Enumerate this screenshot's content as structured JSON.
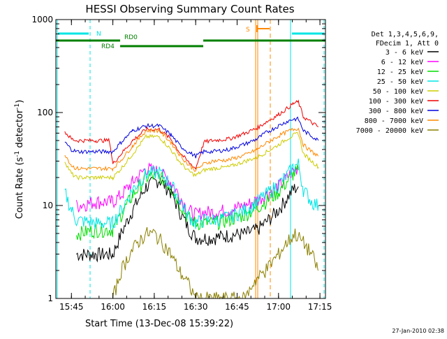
{
  "chart_data": {
    "type": "line",
    "title": "HESSI Observing Summary Count Rates",
    "xlabel": "Start Time (13-Dec-08 15:39:22)",
    "ylabel_main": "Count Rate (s",
    "ylabel_sup": "-1",
    "ylabel_mid": " detector",
    "ylabel_sup2": "-1",
    "ylabel_end": ")",
    "timestamp": "27-Jan-2010 02:38",
    "x_range": [
      "15:39:22",
      "17:17"
    ],
    "ylim": [
      1,
      1000
    ],
    "yscale": "log",
    "x_ticks": [
      "15:45",
      "16:00",
      "16:15",
      "16:30",
      "16:45",
      "17:00",
      "17:15"
    ],
    "y_ticks": [
      "1",
      "10",
      "100",
      "1000"
    ],
    "legend": {
      "position": "right",
      "header": [
        "Det 1,3,4,5,6,9,",
        "FDecim 1, Att 0"
      ],
      "entries": [
        {
          "label": "3 - 6 keV",
          "color": "#000000"
        },
        {
          "label": "6 - 12 keV",
          "color": "#ff00ff"
        },
        {
          "label": "12 - 25 keV",
          "color": "#00dd00"
        },
        {
          "label": "25 - 50 keV",
          "color": "#00e5e5"
        },
        {
          "label": "50 - 100 keV",
          "color": "#cccc00"
        },
        {
          "label": "100 - 300 keV",
          "color": "#ee0000"
        },
        {
          "label": "300 - 800 keV",
          "color": "#0000dd"
        },
        {
          "label": "800 - 7000 keV",
          "color": "#ff8800"
        },
        {
          "label": "7000 - 20000 keV",
          "color": "#8b8000"
        }
      ]
    },
    "flags": {
      "N_label": "N",
      "S_label": "S",
      "RD0_label": "RD0",
      "RD4_label": "RD4",
      "night_color": "#00e5e5",
      "saa_color": "#ff8800",
      "rd_color": "#008000"
    },
    "series": [
      {
        "name": "3 - 6 keV",
        "color": "#000000",
        "x": [
          15.76,
          15.78,
          15.9,
          15.98,
          16.0,
          16.05,
          16.12,
          16.2,
          16.28,
          16.35,
          16.4,
          16.45,
          16.5,
          16.55,
          16.6,
          16.7,
          16.8,
          16.87,
          16.92,
          17.0,
          17.05,
          17.09,
          17.12
        ],
        "y": [
          null,
          3,
          3,
          3,
          3,
          5,
          9,
          16,
          19,
          14,
          9,
          6,
          4.5,
          4.5,
          4.5,
          4.8,
          5,
          5.5,
          6.5,
          9,
          12,
          15,
          16
        ]
      },
      {
        "name": "6 - 12 keV",
        "color": "#ff00ff",
        "x": [
          15.76,
          15.78,
          15.9,
          15.98,
          16.0,
          16.05,
          16.12,
          16.2,
          16.28,
          16.35,
          16.4,
          16.45,
          16.5,
          16.55,
          16.6,
          16.7,
          16.8,
          16.87,
          16.92,
          17.0,
          17.05,
          17.09,
          17.12
        ],
        "y": [
          null,
          10,
          11,
          11,
          11,
          13,
          18,
          25,
          23,
          18,
          13,
          9,
          8,
          8.5,
          8.5,
          9,
          10,
          11.5,
          13,
          16,
          20,
          24,
          26
        ]
      },
      {
        "name": "12 - 25 keV",
        "color": "#00dd00",
        "x": [
          15.76,
          15.78,
          15.9,
          15.98,
          16.0,
          16.05,
          16.12,
          16.2,
          16.28,
          16.35,
          16.4,
          16.45,
          16.5,
          16.55,
          16.6,
          16.7,
          16.8,
          16.87,
          16.92,
          17.0,
          17.05,
          17.09,
          17.12
        ],
        "y": [
          null,
          5,
          5.5,
          5.5,
          5.5,
          8,
          13,
          20,
          21,
          16,
          11,
          7.5,
          6.5,
          6.5,
          6.5,
          7,
          8,
          9.5,
          11,
          14,
          18,
          22,
          24
        ]
      },
      {
        "name": "25 - 50 keV",
        "color": "#00e5e5",
        "x": [
          15.71,
          15.75,
          15.78,
          15.9,
          15.98,
          16.0,
          16.05,
          16.12,
          16.2,
          16.28,
          16.35,
          16.4,
          16.45,
          16.5,
          16.55,
          16.6,
          16.7,
          16.8,
          16.87,
          16.92,
          17.0,
          17.05,
          17.09,
          17.12,
          17.15,
          17.2,
          17.24
        ],
        "y": [
          14,
          9,
          7,
          6.5,
          6.5,
          6.5,
          9,
          15,
          22,
          23,
          17,
          12,
          8,
          6.5,
          7,
          7,
          7.5,
          9,
          11,
          13,
          17,
          21,
          26,
          28,
          15,
          11,
          10
        ]
      },
      {
        "name": "50 - 100 keV",
        "color": "#cccc00",
        "x": [
          15.71,
          15.75,
          15.78,
          15.9,
          15.98,
          16.0,
          16.05,
          16.12,
          16.2,
          16.28,
          16.35,
          16.4,
          16.45,
          16.5,
          16.55,
          16.6,
          16.7,
          16.8,
          16.87,
          16.92,
          17.0,
          17.05,
          17.09,
          17.12,
          17.15,
          17.2,
          17.24
        ],
        "y": [
          30,
          22,
          20,
          20,
          20,
          20,
          25,
          36,
          55,
          55,
          40,
          30,
          24,
          21,
          24,
          25,
          26,
          30,
          33,
          37,
          45,
          52,
          57,
          60,
          36,
          30,
          26
        ]
      },
      {
        "name": "100 - 300 keV",
        "color": "#ee0000",
        "x": [
          15.71,
          15.75,
          15.78,
          15.9,
          15.98,
          16.0,
          16.05,
          16.12,
          16.2,
          16.28,
          16.35,
          16.4,
          16.45,
          16.5,
          16.55,
          16.6,
          16.7,
          16.8,
          16.87,
          16.92,
          17.0,
          17.05,
          17.09,
          17.12,
          17.15,
          17.2,
          17.24
        ],
        "y": [
          62,
          52,
          50,
          50,
          50,
          28,
          36,
          50,
          66,
          66,
          52,
          38,
          30,
          25,
          48,
          50,
          52,
          60,
          68,
          78,
          95,
          110,
          125,
          130,
          90,
          78,
          70
        ]
      },
      {
        "name": "300 - 800 keV",
        "color": "#0000dd",
        "x": [
          15.71,
          15.75,
          15.78,
          15.9,
          15.98,
          16.0,
          16.05,
          16.12,
          16.2,
          16.28,
          16.35,
          16.4,
          16.45,
          16.5,
          16.55,
          16.6,
          16.7,
          16.8,
          16.87,
          16.92,
          17.0,
          17.05,
          17.09,
          17.12,
          17.15,
          17.2,
          17.24
        ],
        "y": [
          48,
          40,
          38,
          38,
          38,
          38,
          48,
          64,
          72,
          72,
          58,
          45,
          38,
          34,
          38,
          38,
          40,
          46,
          52,
          60,
          72,
          80,
          85,
          85,
          64,
          56,
          50
        ]
      },
      {
        "name": "800 - 7000 keV",
        "color": "#ff8800",
        "x": [
          15.71,
          15.75,
          15.78,
          15.9,
          15.98,
          16.0,
          16.05,
          16.12,
          16.2,
          16.28,
          16.35,
          16.4,
          16.45,
          16.5,
          16.55,
          16.6,
          16.7,
          16.8,
          16.87,
          16.92,
          17.0,
          17.05,
          17.09,
          17.12,
          17.15,
          17.2,
          17.24
        ],
        "y": [
          36,
          27,
          25,
          25,
          25,
          25,
          31,
          44,
          64,
          64,
          48,
          36,
          28,
          24,
          28,
          30,
          31,
          35,
          40,
          46,
          56,
          62,
          66,
          68,
          45,
          38,
          34
        ]
      },
      {
        "name": "7000 - 20000 keV",
        "color": "#8b8000",
        "x": [
          15.78,
          16.0,
          16.05,
          16.1,
          16.15,
          16.2,
          16.25,
          16.3,
          16.35,
          16.4,
          16.45,
          16.5,
          16.6,
          16.7,
          16.8,
          16.85,
          16.92,
          17.0,
          17.05,
          17.1,
          17.15,
          17.2,
          17.24
        ],
        "y": [
          null,
          1,
          2,
          3,
          4,
          5,
          5,
          4,
          3,
          2,
          1.5,
          1,
          1,
          1,
          1,
          1.5,
          2,
          3,
          4,
          5,
          4,
          3,
          2
        ]
      }
    ]
  }
}
